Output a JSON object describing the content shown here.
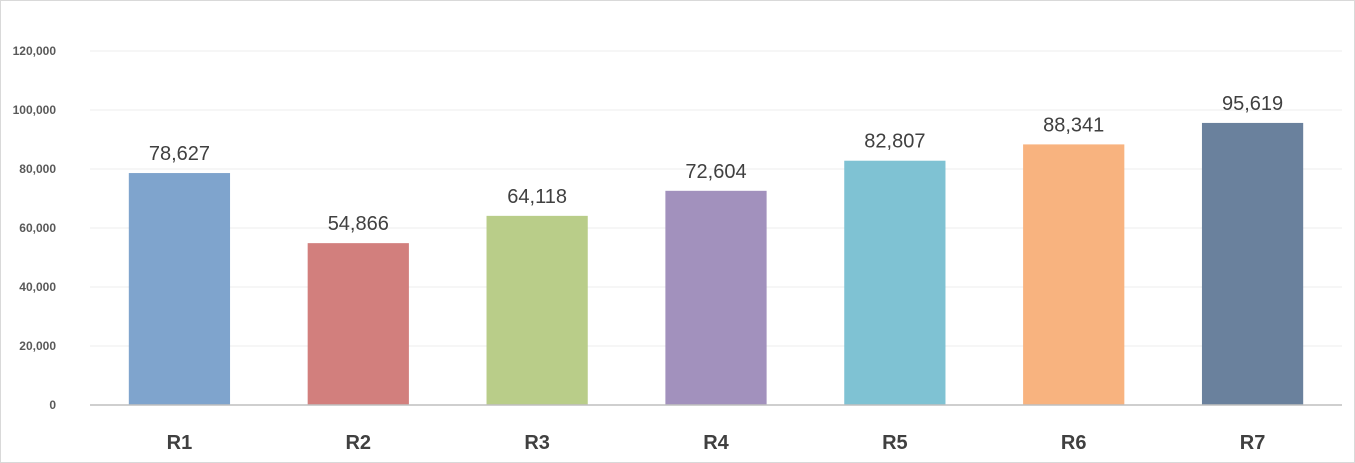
{
  "chart_data": {
    "type": "bar",
    "title": "",
    "xlabel": "",
    "ylabel": "",
    "categories": [
      "R1",
      "R2",
      "R3",
      "R4",
      "R5",
      "R6",
      "R7"
    ],
    "values": [
      78627,
      54866,
      64118,
      72604,
      82807,
      88341,
      95619
    ],
    "data_labels": [
      "78,627",
      "54,866",
      "64,118",
      "72,604",
      "82,807",
      "88,341",
      "95,619"
    ],
    "colors": [
      "#7fa4cd",
      "#d27f7d",
      "#b9cd89",
      "#a291bd",
      "#7fc2d3",
      "#f8b37f",
      "#6a819d"
    ],
    "ylim": [
      0,
      120000
    ],
    "yticks": [
      0,
      20000,
      40000,
      60000,
      80000,
      100000,
      120000
    ],
    "ytick_labels": [
      "0",
      "20,000",
      "40,000",
      "60,000",
      "80,000",
      "100,000",
      "120,000"
    ],
    "grid": true,
    "legend": "none"
  }
}
